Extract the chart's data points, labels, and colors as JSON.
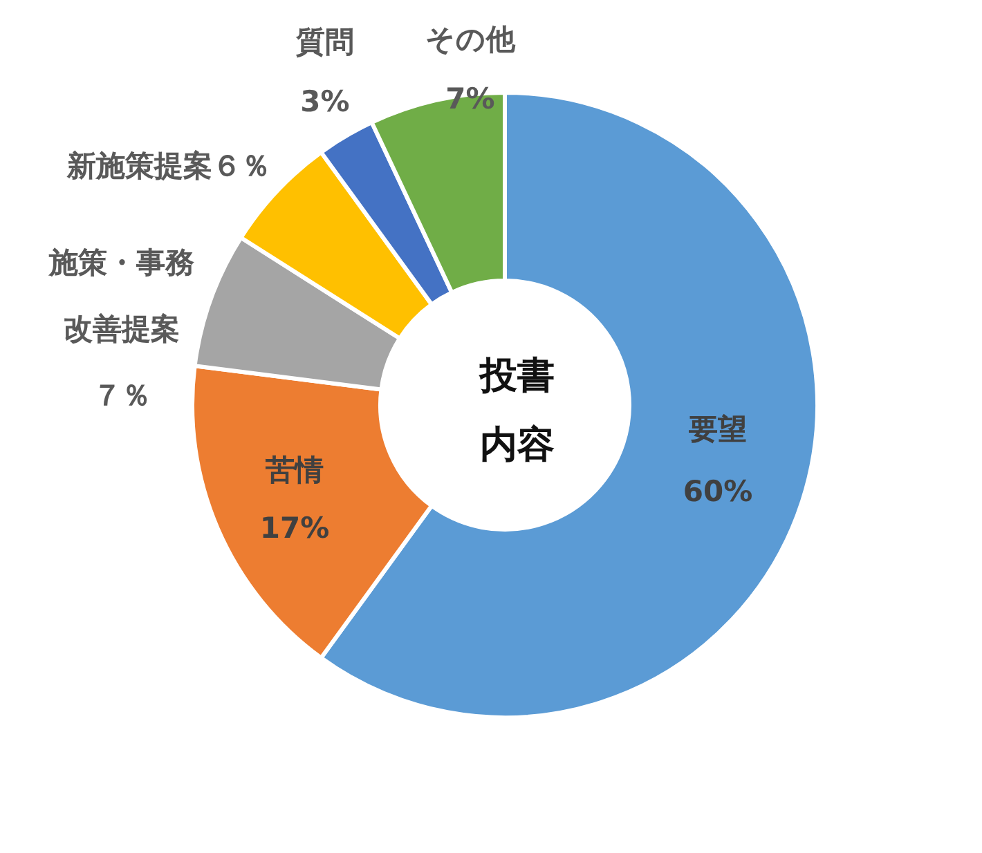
{
  "chart_data": {
    "type": "donut",
    "title": "投書内容",
    "categories": [
      "要望",
      "苦情",
      "施策・事務改善提案",
      "新施策提案",
      "質問",
      "その他"
    ],
    "values": [
      60,
      17,
      7,
      6,
      3,
      7
    ],
    "value_labels": [
      "60%",
      "17%",
      "７％",
      "６％",
      "3%",
      "7%"
    ],
    "colors": [
      "#5b9bd5",
      "#ed7d31",
      "#a5a5a5",
      "#ffc000",
      "#4472c4",
      "#70ad47"
    ]
  }
}
